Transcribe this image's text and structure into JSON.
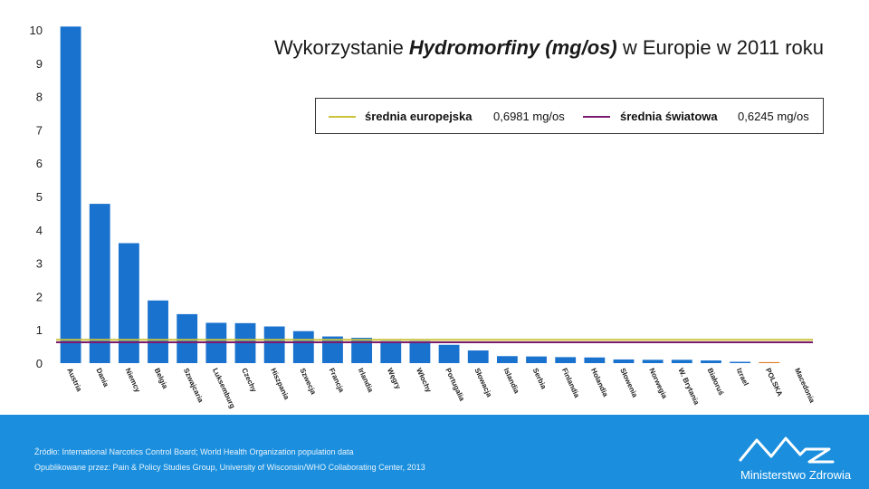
{
  "chart_data": {
    "type": "bar",
    "title": {
      "prefix": "Wykorzystanie ",
      "emph": "Hydromorfiny (mg/os)",
      "suffix": " w Europie w 2011 roku"
    },
    "categories": [
      "Austria",
      "Dania",
      "Niemcy",
      "Belgia",
      "Szwajcaria",
      "Luksemburg",
      "Czechy",
      "Hiszpania",
      "Szwecja",
      "Francja",
      "Irlandia",
      "Węgry",
      "Włochy",
      "Portugalia",
      "Słowacja",
      "Islandia",
      "Serbia",
      "Finlandia",
      "Holandia",
      "Słowenia",
      "Norwegia",
      "W. Brytania",
      "Białoruś",
      "Izrael",
      "POLSKA",
      "Macedonia"
    ],
    "values": [
      10.1,
      4.78,
      3.6,
      1.88,
      1.47,
      1.21,
      1.2,
      1.1,
      0.96,
      0.8,
      0.76,
      0.66,
      0.66,
      0.55,
      0.38,
      0.21,
      0.2,
      0.18,
      0.17,
      0.11,
      0.1,
      0.1,
      0.08,
      0.04,
      0.03,
      0.0
    ],
    "ylim": [
      0,
      10
    ],
    "yticks": [
      "0",
      "1",
      "2",
      "3",
      "4",
      "5",
      "6",
      "7",
      "8",
      "9",
      "10"
    ],
    "bar_color": "#1a72cf",
    "highlight": "POLSKA",
    "highlight_color": "#e07a1f",
    "reference_lines": [
      {
        "name": "średnia europejska",
        "value_label": "0,6981 mg/os",
        "value": 0.6981,
        "color": "#c9c23a"
      },
      {
        "name": "średnia światowa",
        "value_label": "0,6245 mg/os",
        "value": 0.6245,
        "color": "#7b1b6e"
      }
    ],
    "grid": false,
    "legend": "top-right"
  },
  "footer": {
    "source": "Źródło:  International Narcotics Control Board; World Health Organization population data",
    "published": "Opublikowane przez:  Pain & Policy Studies Group, University of Wisconsin/WHO Collaborating Center, 2013",
    "logo_text": "Ministerstwo Zdrowia",
    "background": "#1b8fde"
  }
}
